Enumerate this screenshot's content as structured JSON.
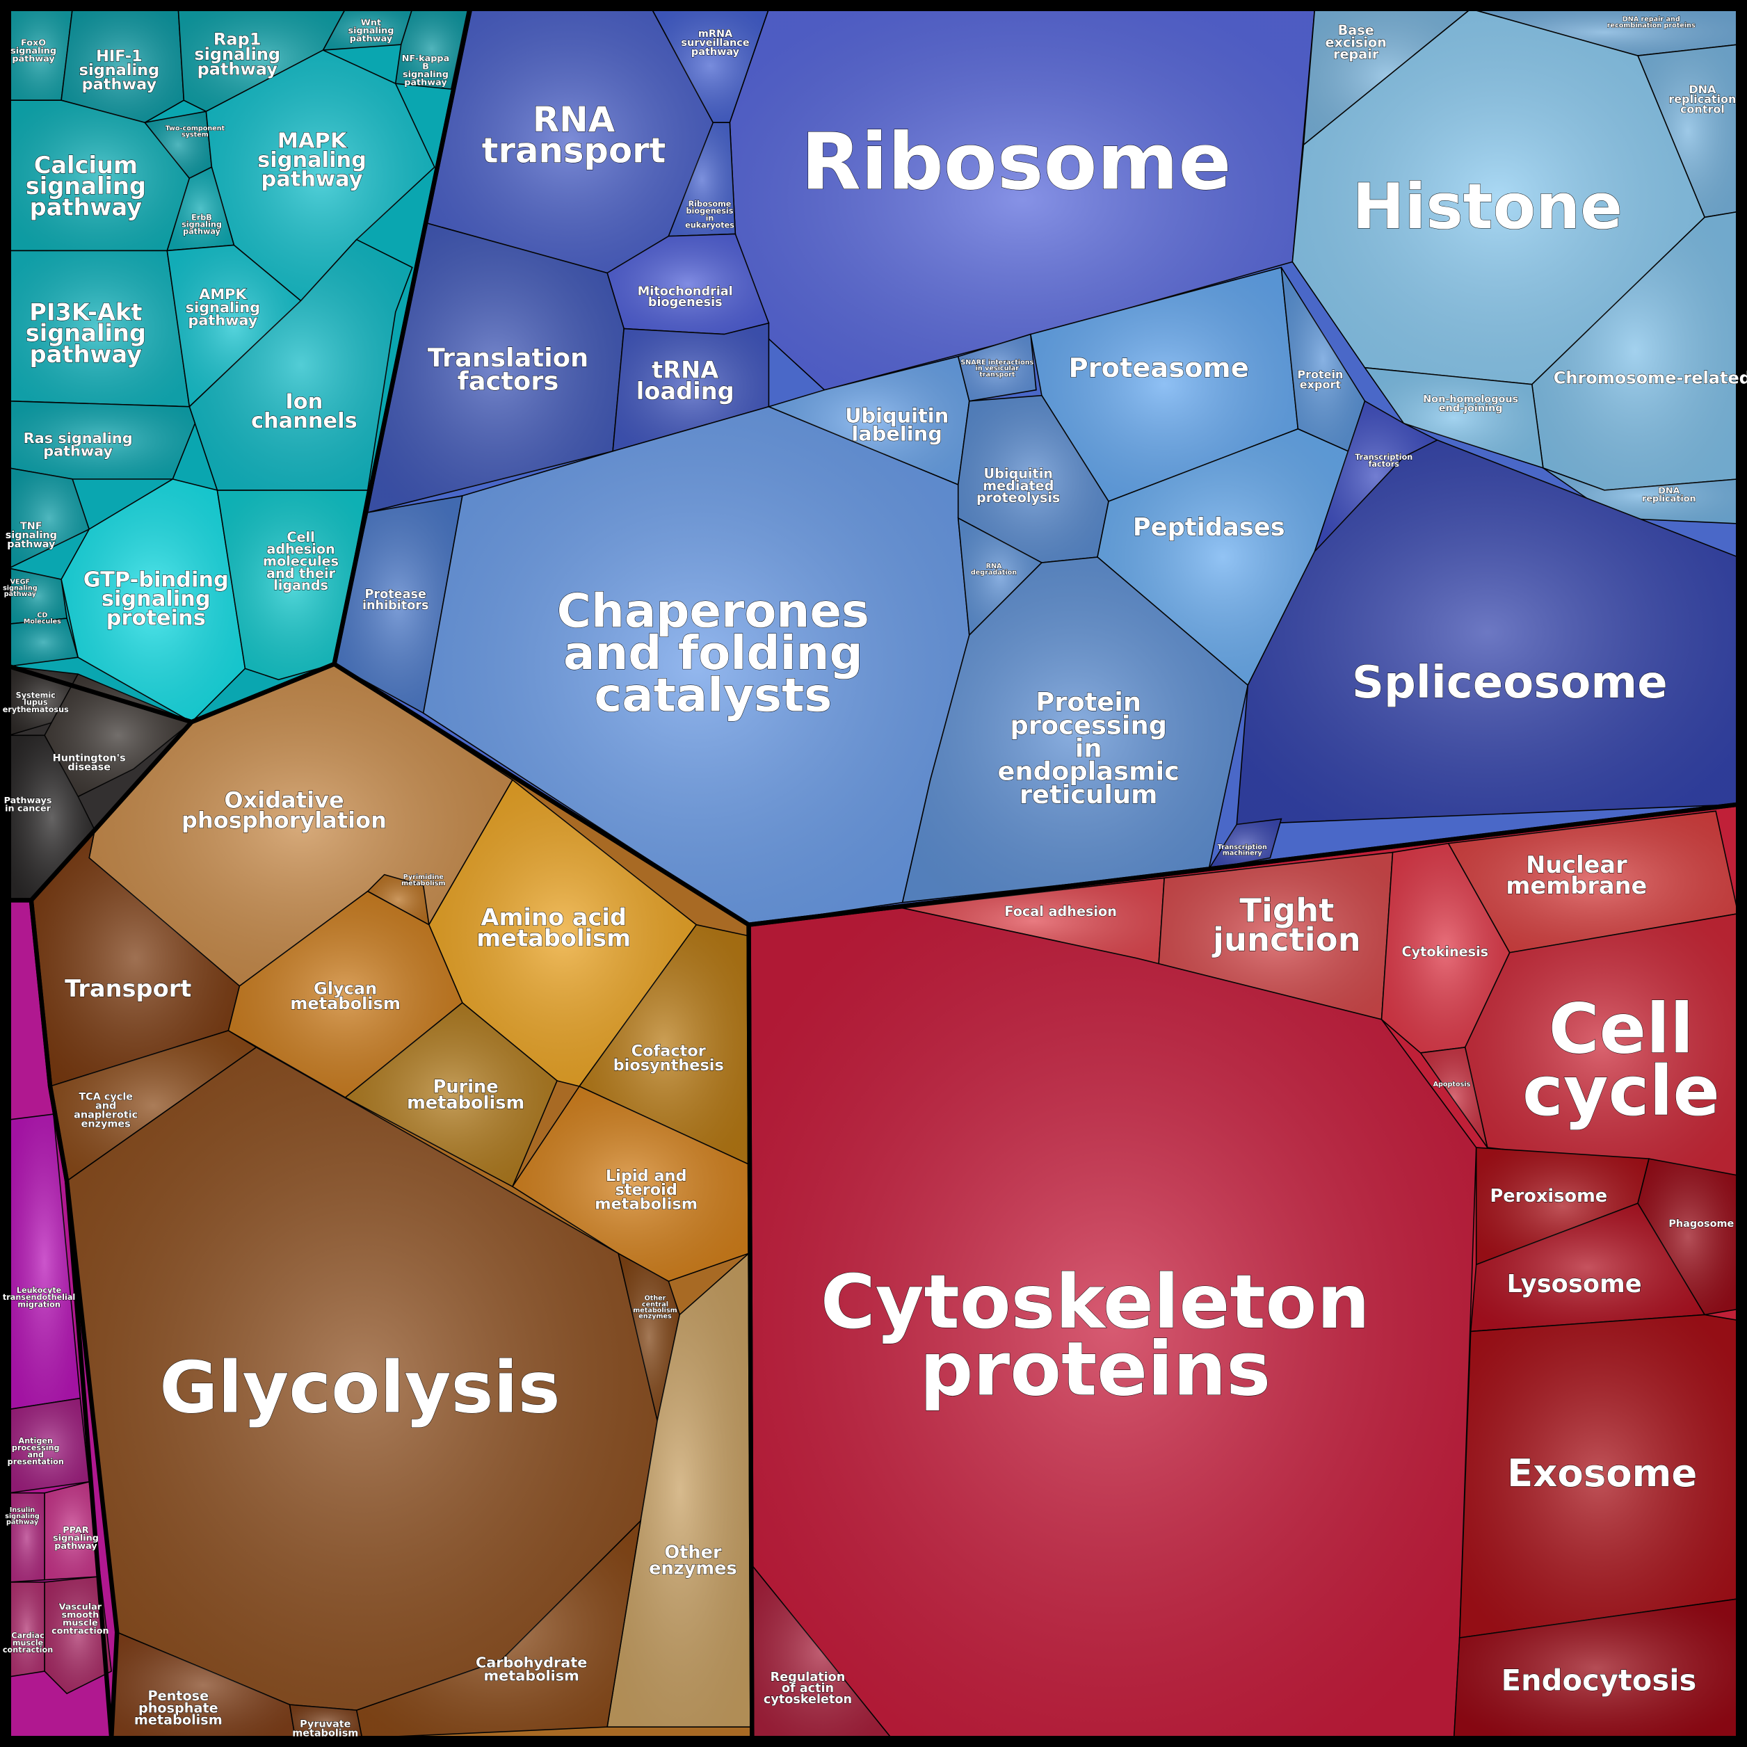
{
  "cells": [
    {
      "label": "FoxO signaling pathway"
    },
    {
      "label": "HIF-1 signaling pathway"
    },
    {
      "label": "Rap1 signaling pathway"
    },
    {
      "label": "Wnt signaling pathway"
    },
    {
      "label": "NF-kappa B signaling pathway"
    },
    {
      "label": "Calcium signaling pathway"
    },
    {
      "label": "Two-component system"
    },
    {
      "label": "MAPK signaling pathway"
    },
    {
      "label": "ErbB signaling pathway"
    },
    {
      "label": "PI3K-Akt signaling pathway"
    },
    {
      "label": "AMPK signaling pathway"
    },
    {
      "label": "Ion channels"
    },
    {
      "label": "Ras signaling pathway"
    },
    {
      "label": "TNF signaling pathway"
    },
    {
      "label": "GTP-binding signaling proteins"
    },
    {
      "label": "Cell adhesion molecules and their ligands"
    },
    {
      "label": "VEGF signaling pathway"
    },
    {
      "label": "CD Molecules"
    },
    {
      "label": "RNA transport"
    },
    {
      "label": "mRNA surveillance pathway"
    },
    {
      "label": "Ribosome"
    },
    {
      "label": "Ribosome biogenesis in eukaryotes"
    },
    {
      "label": "Mitochondrial biogenesis"
    },
    {
      "label": "Translation factors"
    },
    {
      "label": "tRNA loading"
    },
    {
      "label": "Protease inhibitors"
    },
    {
      "label": "Chaperones and folding catalysts"
    },
    {
      "label": "Ubiquitin labeling"
    },
    {
      "label": "SNARE interactions in vesicular transport"
    },
    {
      "label": "Proteasome"
    },
    {
      "label": "Protein export"
    },
    {
      "label": "Ubiquitin mediated proteolysis"
    },
    {
      "label": "RNA degradation"
    },
    {
      "label": "Peptidases"
    },
    {
      "label": "Protein processing in endoplasmic reticulum"
    },
    {
      "label": "Base excision repair"
    },
    {
      "label": "DNA repair and recombination proteins"
    },
    {
      "label": "DNA replication control"
    },
    {
      "label": "Histone"
    },
    {
      "label": "Chromosome-related"
    },
    {
      "label": "Non-homologous end-joining"
    },
    {
      "label": "DNA replication"
    },
    {
      "label": "Transcription factors"
    },
    {
      "label": "Spliceosome"
    },
    {
      "label": "Transcription machinery"
    },
    {
      "label": "Systemic lupus erythematosus"
    },
    {
      "label": "Huntington's disease"
    },
    {
      "label": "Pathways in cancer"
    },
    {
      "label": "Oxidative phosphorylation"
    },
    {
      "label": "Transport"
    },
    {
      "label": "Pyrimidine metabolism"
    },
    {
      "label": "Amino acid metabolism"
    },
    {
      "label": "Glycan metabolism"
    },
    {
      "label": "Purine metabolism"
    },
    {
      "label": "Cofactor biosynthesis"
    },
    {
      "label": "Lipid and steroid metabolism"
    },
    {
      "label": "TCA cycle and anaplerotic enzymes"
    },
    {
      "label": "Glycolysis"
    },
    {
      "label": "Other central metabolism enzymes"
    },
    {
      "label": "Other enzymes"
    },
    {
      "label": "Carbohydrate metabolism"
    },
    {
      "label": "Pentose phosphate metabolism"
    },
    {
      "label": "Pyruvate metabolism"
    },
    {
      "label": "Focal adhesion"
    },
    {
      "label": "Tight junction"
    },
    {
      "label": "Cytokinesis"
    },
    {
      "label": "Nuclear membrane"
    },
    {
      "label": "Cell cycle"
    },
    {
      "label": "Apoptosis"
    },
    {
      "label": "Cytoskeleton proteins"
    },
    {
      "label": "Regulation of actin cytoskeleton"
    },
    {
      "label": "Peroxisome"
    },
    {
      "label": "Phagosome"
    },
    {
      "label": "Lysosome"
    },
    {
      "label": "Exosome"
    },
    {
      "label": "Endocytosis"
    },
    {
      "label": "Leukocyte transendothelial migration"
    },
    {
      "label": "Antigen processing and presentation"
    },
    {
      "label": "PPAR signaling pathway"
    },
    {
      "label": "Vascular smooth muscle contraction"
    },
    {
      "label": "Insulin signaling pathway"
    },
    {
      "label": "Cardiac muscle contraction"
    }
  ]
}
